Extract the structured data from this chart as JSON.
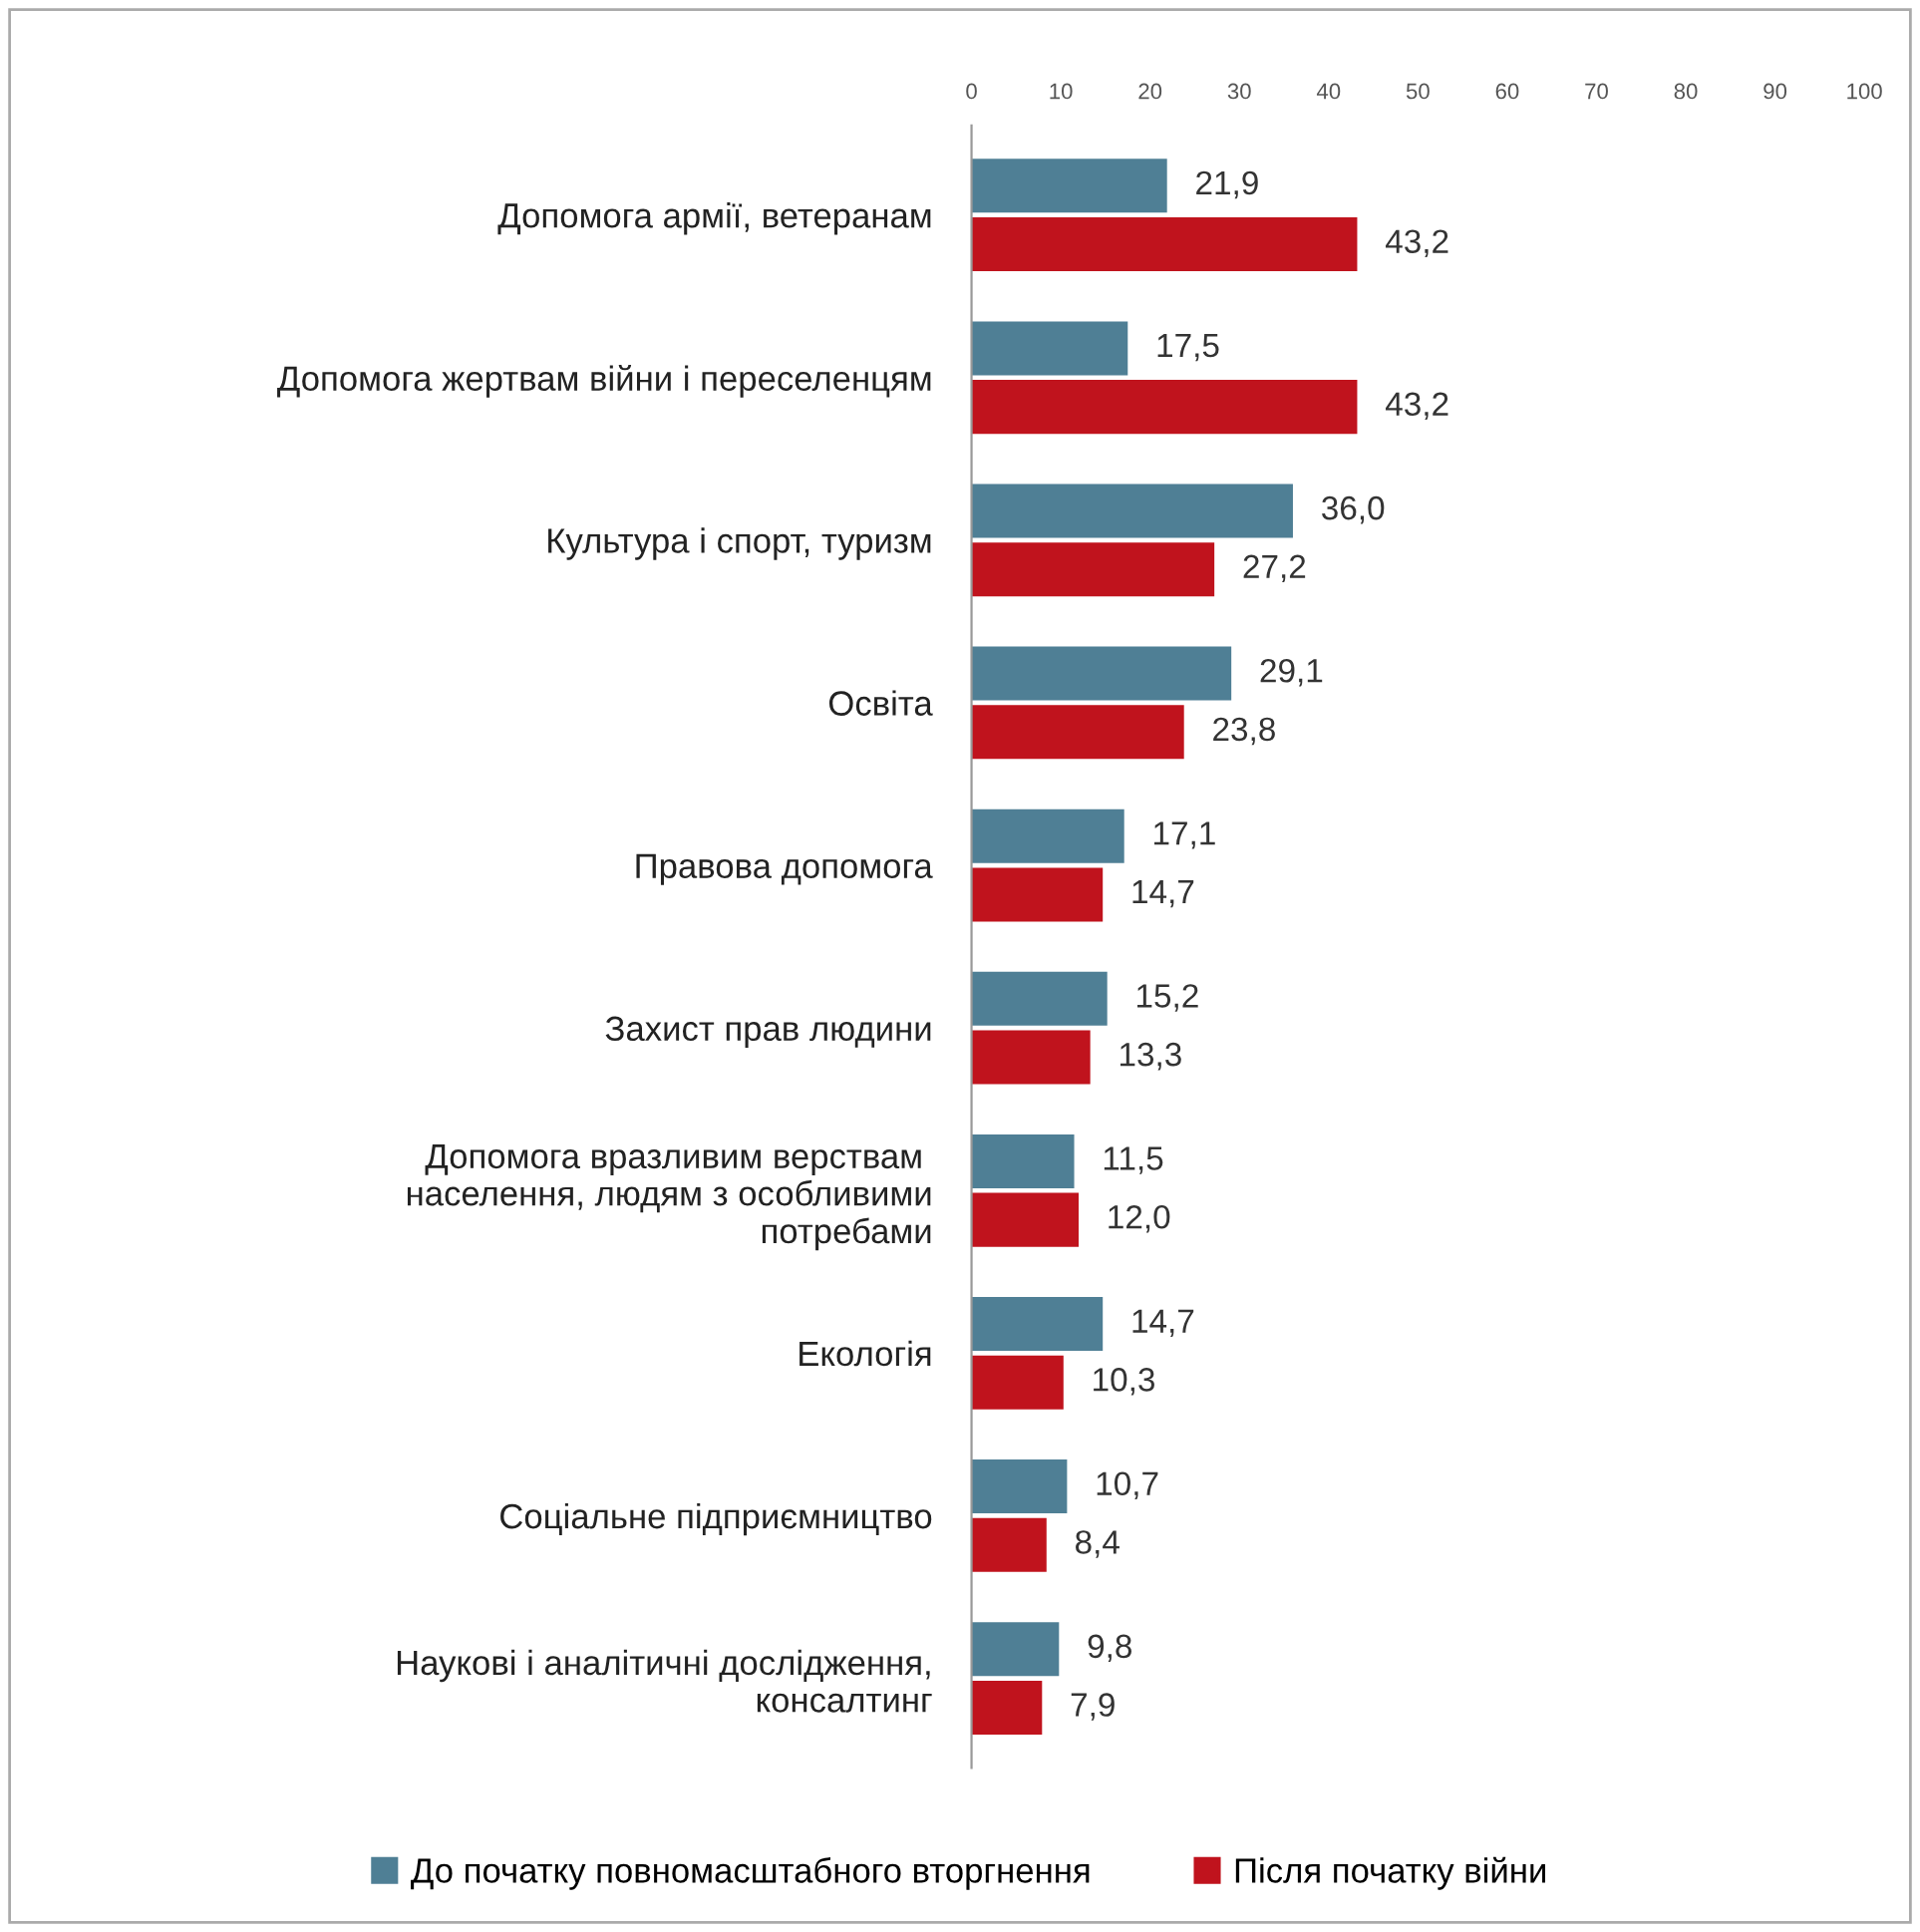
{
  "chart_data": {
    "type": "bar",
    "orientation": "horizontal",
    "categories": [
      "Допомога армії, ветеранам",
      "Допомога жертвам війни і переселенцям",
      "Культура і спорт, туризм",
      "Освіта",
      "Правова допомога",
      "Захист прав людини",
      "Допомога вразливим верствам \nнаселення, людям з особливими\nпотребами",
      "Екологія",
      "Соціальне підприємництво",
      "Наукові і аналітичні дослідження,\nконсалтинг"
    ],
    "series": [
      {
        "name": "До початку повномасштабного вторгнення",
        "color": "#4f7f95",
        "values": [
          21.9,
          17.5,
          36.0,
          29.1,
          17.1,
          15.2,
          11.5,
          14.7,
          10.7,
          9.8
        ],
        "value_labels": [
          "21,9",
          "17,5",
          "36,0",
          "29,1",
          "17,1",
          "15,2",
          "11,5",
          "14,7",
          "10,7",
          "9,8"
        ]
      },
      {
        "name": "Після початку війни",
        "color": "#c0131d",
        "values": [
          43.2,
          43.2,
          27.2,
          23.8,
          14.7,
          13.3,
          12.0,
          10.3,
          8.4,
          7.9
        ],
        "value_labels": [
          "43,2",
          "43,2",
          "27,2",
          "23,8",
          "14,7",
          "13,3",
          "12,0",
          "10,3",
          "8,4",
          "7,9"
        ]
      }
    ],
    "xlim": [
      0,
      100
    ],
    "xticks": [
      0,
      10,
      20,
      30,
      40,
      50,
      60,
      70,
      80,
      90,
      100
    ],
    "grid": false,
    "legend": "bottom"
  }
}
